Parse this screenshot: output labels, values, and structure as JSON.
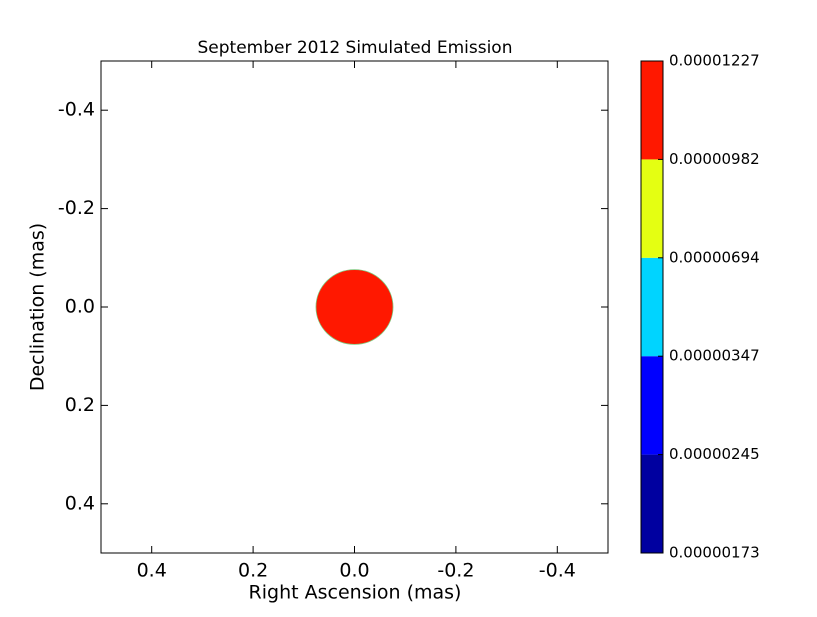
{
  "chart_data": {
    "type": "contour",
    "title": "September 2012 Simulated Emission",
    "xlabel": "Right Ascension (mas)",
    "ylabel": "Declination (mas)",
    "xlim": [
      0.5,
      -0.5
    ],
    "ylim": [
      -0.5,
      0.5
    ],
    "xticks": [
      0.4,
      0.2,
      {
        "value": 0,
        "label": "0.0"
      },
      -0.2,
      -0.4
    ],
    "yticks": [
      -0.4,
      -0.2,
      {
        "value": 0,
        "label": "0.0"
      },
      0.2,
      0.4
    ],
    "emission": {
      "center_x": 0,
      "center_y": 0,
      "radius": 0.076,
      "color": "#ff1800"
    },
    "colorbar": {
      "levels": [
        {
          "value": 1.73e-06,
          "label": "0.00000173"
        },
        {
          "value": 2.45e-06,
          "label": "0.00000245"
        },
        {
          "value": 3.47e-06,
          "label": "0.00000347"
        },
        {
          "value": 6.94e-06,
          "label": "0.00000694"
        },
        {
          "value": 9.82e-06,
          "label": "0.00000982"
        },
        {
          "value": 1.227e-05,
          "label": "0.00001227"
        }
      ],
      "colors": [
        "#0000a0",
        "#0000ff",
        "#00d4ff",
        "#e4ff12",
        "#ff1800"
      ]
    }
  }
}
